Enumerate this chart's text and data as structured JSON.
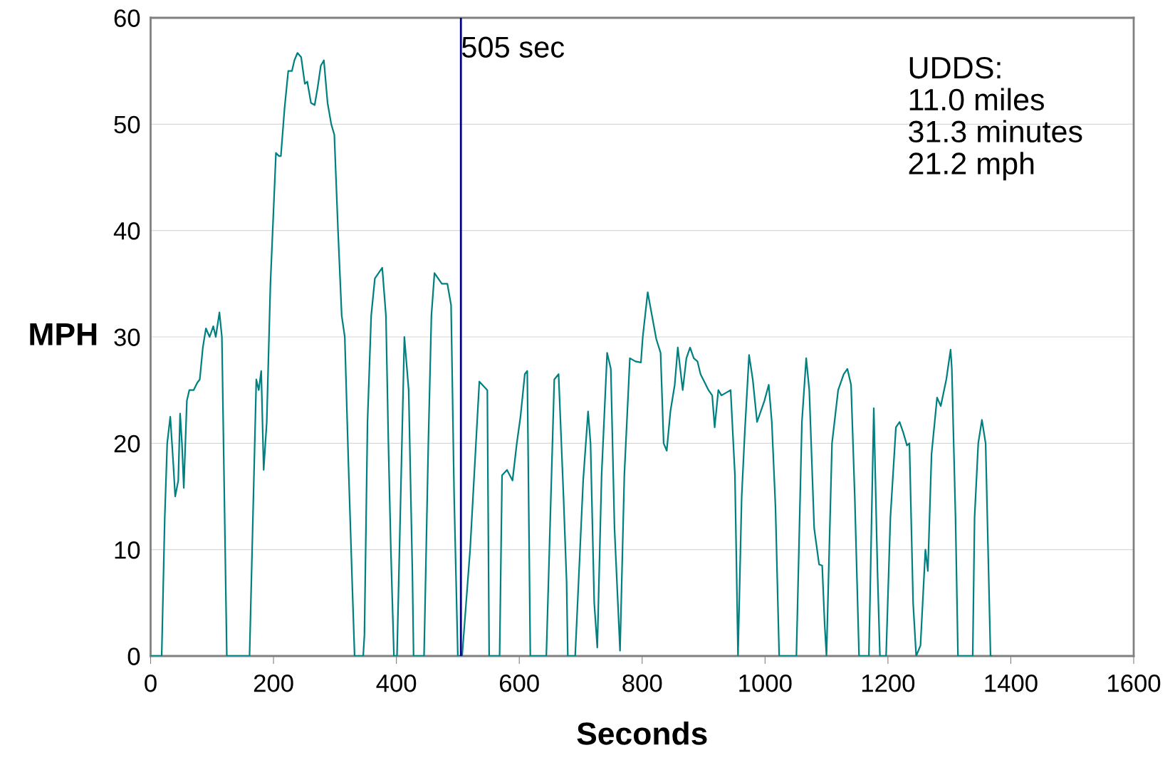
{
  "chart_data": {
    "type": "line",
    "xlabel": "Seconds",
    "ylabel": "MPH",
    "xlim": [
      0,
      1600
    ],
    "ylim": [
      0,
      60
    ],
    "xticks": [
      0,
      200,
      400,
      600,
      800,
      1000,
      1200,
      1400,
      1600
    ],
    "yticks": [
      0,
      10,
      20,
      30,
      40,
      50,
      60
    ],
    "grid": "y",
    "legend": false,
    "marker": "none",
    "line_style": "solid",
    "ref_lines": [
      {
        "axis": "x",
        "value": 505,
        "label": "505 sec",
        "color": "#000080",
        "line_style": "solid"
      }
    ],
    "annotations": [
      "UDDS:\n11.0 miles\n31.3 minutes\n21.2 mph"
    ],
    "series": [
      {
        "color": "#008080",
        "x": [
          0,
          18,
          23,
          27,
          32,
          37,
          40,
          45,
          48,
          51,
          54,
          59,
          63,
          70,
          76,
          80,
          85,
          90,
          96,
          102,
          106,
          112,
          116,
          124,
          161,
          172,
          176,
          180,
          184,
          189,
          195,
          204,
          209,
          212,
          218,
          224,
          230,
          234,
          239,
          245,
          251,
          255,
          261,
          267,
          272,
          277,
          282,
          288,
          294,
          299,
          305,
          311,
          316,
          322,
          328,
          332,
          346,
          348,
          353,
          359,
          365,
          371,
          377,
          383,
          387,
          391,
          396,
          401,
          413,
          420,
          426,
          428,
          445,
          452,
          457,
          462,
          468,
          474,
          483,
          489,
          494,
          500,
          507,
          520,
          535,
          548,
          551,
          568,
          572,
          580,
          589,
          596,
          602,
          609,
          613,
          618,
          644,
          657,
          664,
          672,
          677,
          679,
          691,
          704,
          712,
          716,
          722,
          727,
          734,
          743,
          749,
          755,
          764,
          771,
          780,
          789,
          798,
          801,
          809,
          816,
          823,
          830,
          835,
          840,
          846,
          853,
          858,
          866,
          872,
          878,
          884,
          890,
          895,
          908,
          914,
          918,
          924,
          929,
          935,
          944,
          951,
          956,
          962,
          967,
          974,
          980,
          987,
          993,
          999,
          1006,
          1011,
          1017,
          1023,
          1051,
          1060,
          1067,
          1072,
          1080,
          1088,
          1093,
          1097,
          1100,
          1109,
          1119,
          1128,
          1134,
          1140,
          1146,
          1153,
          1169,
          1177,
          1183,
          1187,
          1197,
          1204,
          1213,
          1219,
          1225,
          1231,
          1235,
          1241,
          1246,
          1253,
          1261,
          1265,
          1271,
          1280,
          1286,
          1295,
          1302,
          1304,
          1310,
          1314,
          1338,
          1341,
          1347,
          1353,
          1359,
          1367,
          1369
        ],
        "values": [
          0,
          0,
          13,
          20,
          22.5,
          18,
          15,
          16.5,
          22.8,
          20,
          15.8,
          24,
          25,
          25,
          25.7,
          26,
          29,
          30.8,
          30,
          31,
          30,
          32.3,
          30,
          0,
          0,
          26,
          25,
          26.8,
          17.5,
          22,
          35,
          47.3,
          47,
          47,
          51.5,
          55,
          55,
          56,
          56.7,
          56.3,
          53.8,
          54,
          52,
          51.8,
          53.5,
          55.5,
          56,
          52,
          50,
          49,
          40,
          32,
          30,
          18,
          7,
          0,
          0,
          2,
          22,
          32,
          35.5,
          36,
          36.5,
          32,
          20,
          10,
          0,
          0,
          30,
          25,
          8,
          0,
          0,
          20,
          32,
          36,
          35.5,
          35,
          35,
          33,
          15,
          0,
          0,
          10,
          25.8,
          25,
          0,
          0,
          17,
          17.5,
          16.5,
          20,
          22.5,
          26.5,
          26.8,
          0,
          0,
          26,
          26.5,
          15,
          7,
          0,
          0,
          16.5,
          23,
          20,
          5,
          0.8,
          17,
          28.5,
          27,
          12,
          0.5,
          17,
          28,
          27.7,
          27.6,
          30,
          34.2,
          32,
          29.8,
          28.5,
          20,
          19.3,
          23,
          25.5,
          29,
          25,
          28,
          29,
          28,
          27.7,
          26.5,
          25,
          24.5,
          21.5,
          25,
          24.5,
          24.7,
          25,
          17,
          0,
          15,
          21,
          28.3,
          26,
          22,
          23,
          24,
          25.5,
          22,
          14,
          0,
          0,
          22,
          28,
          25,
          12,
          8.6,
          8.5,
          3,
          0,
          20,
          25,
          26.5,
          27,
          25.5,
          15,
          0,
          0,
          23.3,
          8,
          0,
          0,
          13,
          21.5,
          22,
          21,
          19.8,
          20,
          5,
          0,
          1,
          10,
          8,
          19,
          24.3,
          23.5,
          26,
          28.8,
          27,
          13,
          0,
          0,
          13,
          20,
          22.2,
          20,
          0,
          0
        ]
      }
    ]
  }
}
